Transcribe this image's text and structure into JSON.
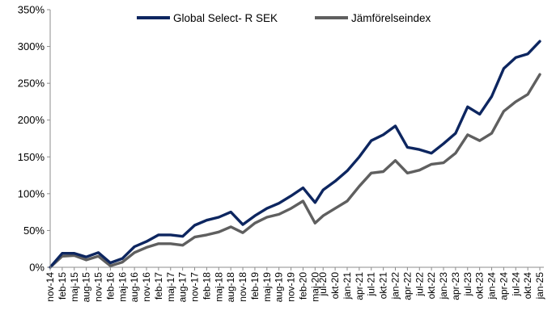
{
  "chart_data": {
    "type": "line",
    "title": "",
    "xlabel": "",
    "ylabel": "",
    "ylim": [
      0,
      350
    ],
    "y_ticks": [
      "0%",
      "50%",
      "100%",
      "150%",
      "200%",
      "250%",
      "300%",
      "350%"
    ],
    "x_tick_labels": [
      "nov-14",
      "feb-15",
      "maj-15",
      "aug-15",
      "nov-15",
      "feb-16",
      "maj-16",
      "aug-16",
      "nov-16",
      "feb-17",
      "maj-17",
      "aug-17",
      "nov-17",
      "feb-18",
      "maj-18",
      "aug-18",
      "nov-18",
      "feb-19",
      "maj-19",
      "aug-19",
      "nov-19",
      "feb-20",
      "maj-20",
      "jul-20",
      "okt-20",
      "jan-21",
      "apr-21",
      "jul-21",
      "okt-21",
      "jan-22",
      "apr-22",
      "jul-22",
      "okt-22",
      "jan-23",
      "apr-23",
      "jul-23",
      "okt-23",
      "jan-24",
      "apr-24",
      "jul-24",
      "okt-24",
      "jan-25"
    ],
    "grid": false,
    "legend_position": "top",
    "series": [
      {
        "name": "Global Select- R SEK",
        "color": "#0d2660",
        "x": [
          "2014-11",
          "2015-02",
          "2015-05",
          "2015-08",
          "2015-11",
          "2016-02",
          "2016-05",
          "2016-08",
          "2016-11",
          "2017-02",
          "2017-05",
          "2017-08",
          "2017-11",
          "2018-02",
          "2018-05",
          "2018-08",
          "2018-11",
          "2019-02",
          "2019-05",
          "2019-08",
          "2019-11",
          "2020-02",
          "2020-05",
          "2020-07",
          "2020-10",
          "2021-01",
          "2021-04",
          "2021-07",
          "2021-10",
          "2022-01",
          "2022-04",
          "2022-07",
          "2022-10",
          "2023-01",
          "2023-04",
          "2023-07",
          "2023-10",
          "2024-01",
          "2024-04",
          "2024-07",
          "2024-10",
          "2025-01"
        ],
        "values": [
          0,
          19,
          19,
          14,
          20,
          6,
          12,
          28,
          35,
          44,
          44,
          42,
          57,
          64,
          68,
          75,
          58,
          70,
          80,
          87,
          97,
          108,
          88,
          105,
          117,
          131,
          150,
          172,
          180,
          192,
          163,
          160,
          155,
          168,
          182,
          218,
          208,
          232,
          270,
          285,
          290,
          307
        ]
      },
      {
        "name": "Jämförelseindex",
        "color": "#5f5f5f",
        "x": [
          "2014-11",
          "2015-02",
          "2015-05",
          "2015-08",
          "2015-11",
          "2016-02",
          "2016-05",
          "2016-08",
          "2016-11",
          "2017-02",
          "2017-05",
          "2017-08",
          "2017-11",
          "2018-02",
          "2018-05",
          "2018-08",
          "2018-11",
          "2019-02",
          "2019-05",
          "2019-08",
          "2019-11",
          "2020-02",
          "2020-05",
          "2020-07",
          "2020-10",
          "2021-01",
          "2021-04",
          "2021-07",
          "2021-10",
          "2022-01",
          "2022-04",
          "2022-07",
          "2022-10",
          "2023-01",
          "2023-04",
          "2023-07",
          "2023-10",
          "2024-01",
          "2024-04",
          "2024-07",
          "2024-10",
          "2025-01"
        ],
        "values": [
          0,
          15,
          16,
          10,
          15,
          2,
          7,
          20,
          27,
          32,
          32,
          30,
          41,
          44,
          48,
          55,
          47,
          60,
          68,
          72,
          80,
          90,
          60,
          70,
          80,
          90,
          110,
          128,
          130,
          145,
          128,
          132,
          140,
          142,
          155,
          180,
          172,
          182,
          212,
          225,
          235,
          262
        ]
      }
    ]
  }
}
